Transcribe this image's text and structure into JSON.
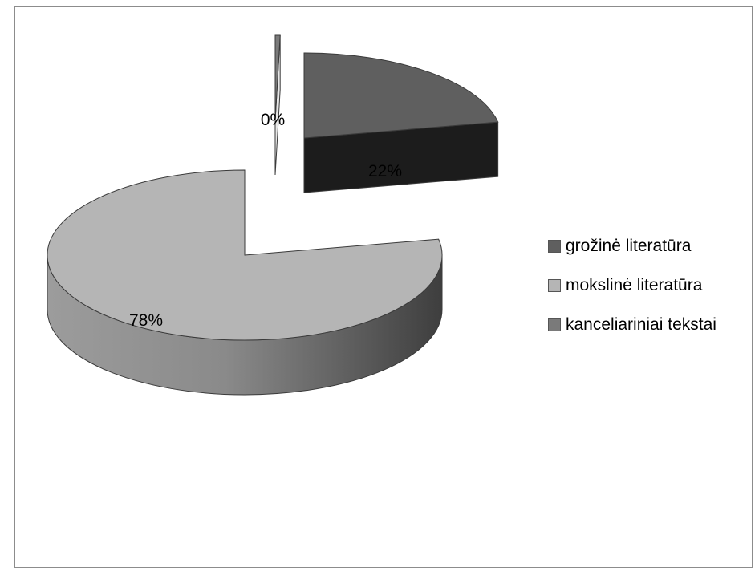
{
  "chart_data": {
    "type": "pie",
    "style": "3d-exploded",
    "categories": [
      "grožinė literatūra",
      "mokslinė literatūra",
      "kanceliariniai tekstai"
    ],
    "values": [
      22,
      78,
      0
    ],
    "data_labels": [
      "22%",
      "78%",
      "0%"
    ],
    "colors": [
      "#5f5f5f",
      "#b5b5b5",
      "#7a7a7a"
    ],
    "legend_position": "right"
  }
}
